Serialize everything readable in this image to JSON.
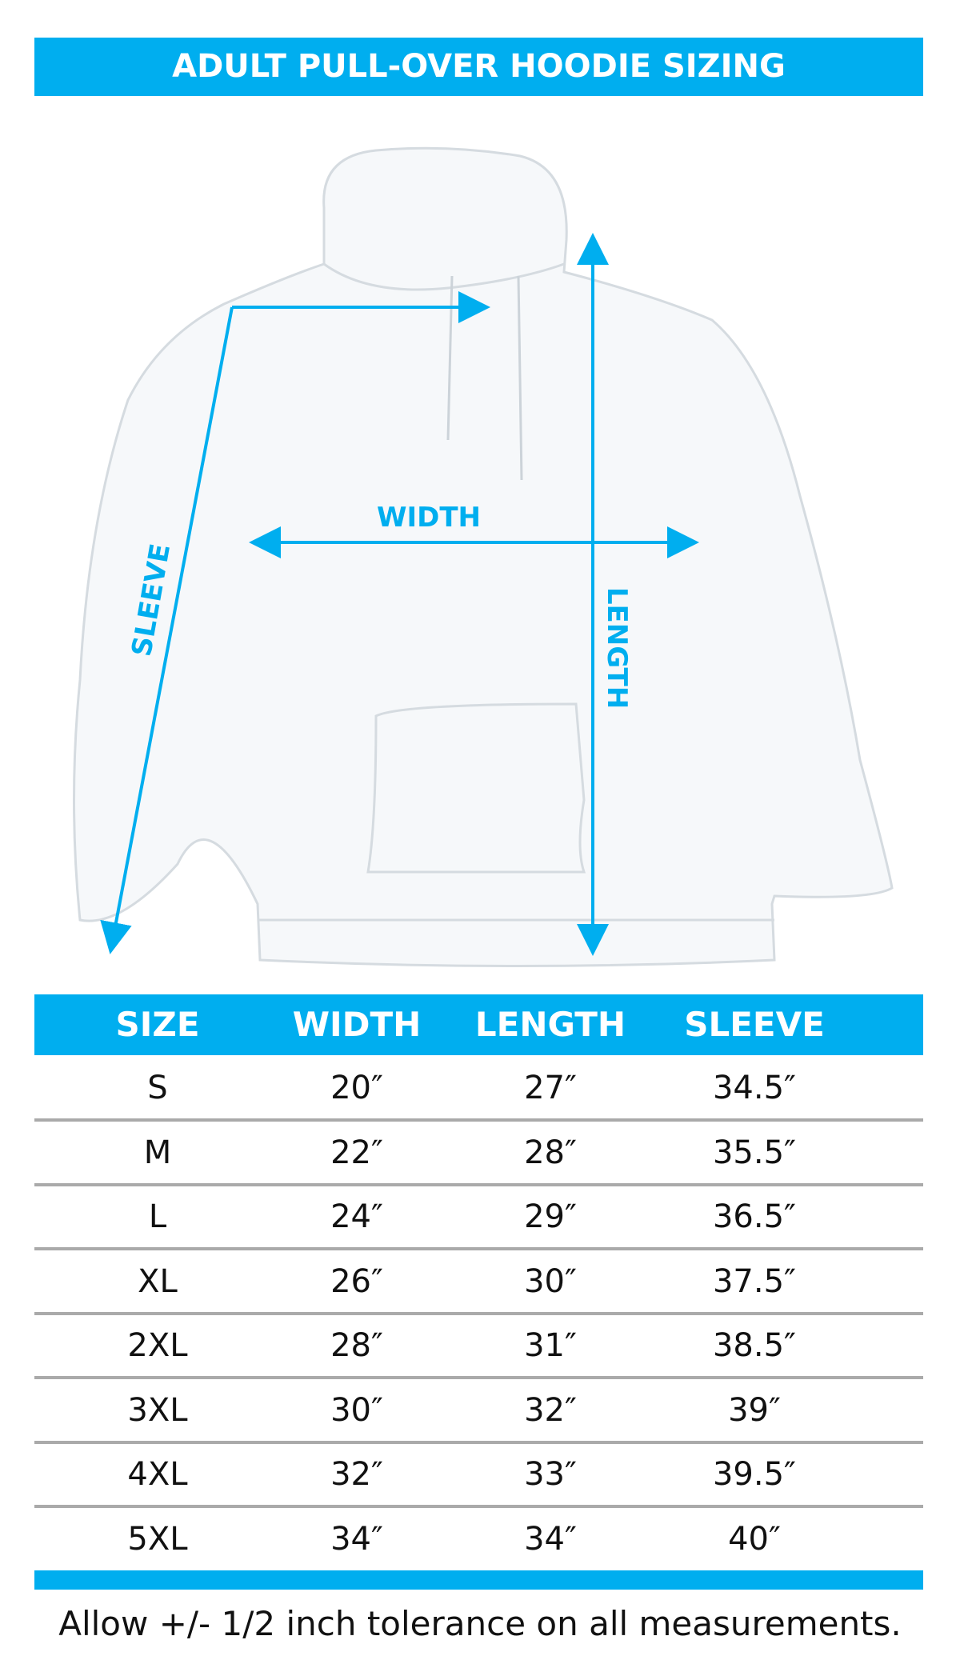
{
  "title": "ADULT PULL-OVER HOODIE SIZING",
  "diagram": {
    "width_label": "WIDTH",
    "length_label": "LENGTH",
    "sleeve_label": "SLEEVE",
    "arrow_color": "#00aeef"
  },
  "table": {
    "headers": [
      "SIZE",
      "WIDTH",
      "LENGTH",
      "SLEEVE"
    ],
    "rows": [
      [
        "S",
        "20″",
        "27″",
        "34.5″"
      ],
      [
        "M",
        "22″",
        "28″",
        "35.5″"
      ],
      [
        "L",
        "24″",
        "29″",
        "36.5″"
      ],
      [
        "XL",
        "26″",
        "30″",
        "37.5″"
      ],
      [
        "2XL",
        "28″",
        "31″",
        "38.5″"
      ],
      [
        "3XL",
        "30″",
        "32″",
        "39″"
      ],
      [
        "4XL",
        "32″",
        "33″",
        "39.5″"
      ],
      [
        "5XL",
        "34″",
        "34″",
        "40″"
      ]
    ]
  },
  "note": "Allow +/- 1/2 inch tolerance on all measurements.",
  "accent": "#00aeef"
}
